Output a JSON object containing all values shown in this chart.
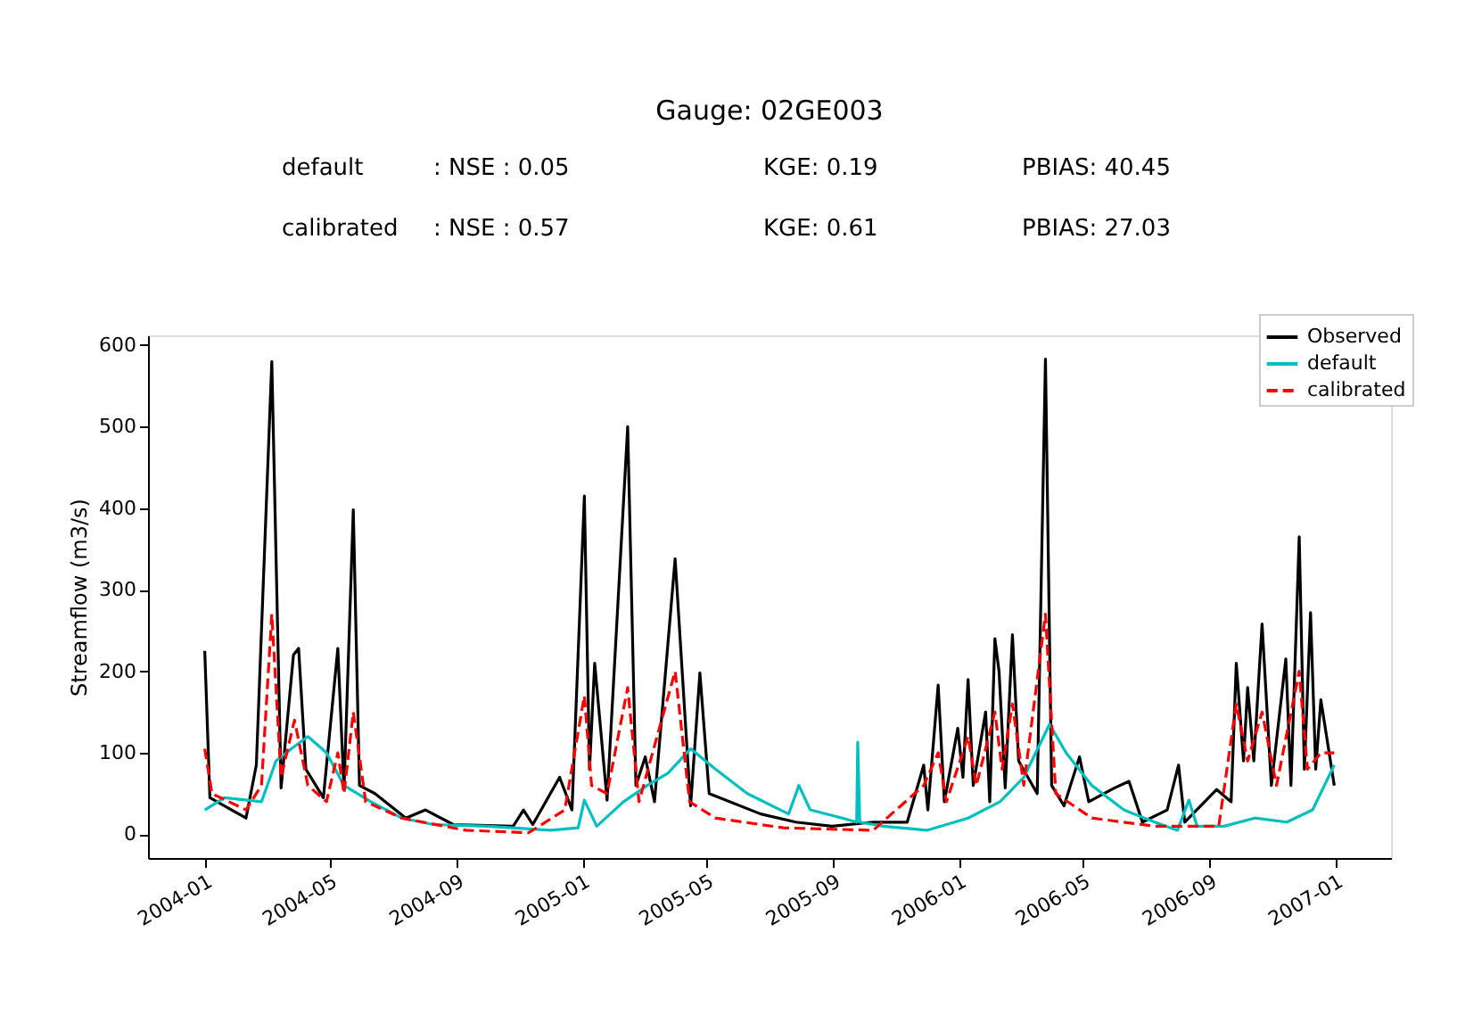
{
  "chart_data": {
    "type": "line",
    "title": "Gauge: 02GE003",
    "annotations": [
      "default",
      ": NSE :  0.05",
      "KGE: 0.19",
      "PBIAS: 40.45",
      "calibrated",
      ": NSE :  0.57",
      "KGE: 0.61",
      "PBIAS: 27.03"
    ],
    "ylabel": "Streamflow (m3/s)",
    "xlim": [
      "2003-11-07",
      "2007-02-24"
    ],
    "ylim": [
      -29,
      612
    ],
    "xticks": [
      {
        "value": "2004-01-01",
        "label": "2004-01"
      },
      {
        "value": "2004-05-01",
        "label": "2004-05"
      },
      {
        "value": "2004-09-01",
        "label": "2004-09"
      },
      {
        "value": "2005-01-01",
        "label": "2005-01"
      },
      {
        "value": "2005-05-01",
        "label": "2005-05"
      },
      {
        "value": "2005-09-01",
        "label": "2005-09"
      },
      {
        "value": "2006-01-01",
        "label": "2006-01"
      },
      {
        "value": "2006-05-01",
        "label": "2006-05"
      },
      {
        "value": "2006-09-01",
        "label": "2006-09"
      },
      {
        "value": "2007-01-01",
        "label": "2007-01"
      }
    ],
    "yticks": [
      0,
      100,
      200,
      300,
      400,
      500,
      600
    ],
    "grid": false,
    "legend": "top right",
    "series": [
      {
        "name": "Observed",
        "color": "#000000",
        "line_style": "solid",
        "x": [
          "2004-01-01",
          "2004-01-06",
          "2004-02-10",
          "2004-02-20",
          "2004-03-06",
          "2004-03-15",
          "2004-03-27",
          "2004-04-01",
          "2004-04-08",
          "2004-04-25",
          "2004-05-09",
          "2004-05-15",
          "2004-05-24",
          "2004-05-30",
          "2004-06-14",
          "2004-07-14",
          "2004-08-02",
          "2004-08-29",
          "2004-10-26",
          "2004-11-05",
          "2004-11-14",
          "2004-12-10",
          "2004-12-22",
          "2005-01-03",
          "2005-01-08",
          "2005-01-13",
          "2005-01-25",
          "2005-02-14",
          "2005-02-22",
          "2005-03-03",
          "2005-03-12",
          "2005-04-01",
          "2005-04-16",
          "2005-04-25",
          "2005-05-04",
          "2005-06-23",
          "2005-07-27",
          "2005-08-31",
          "2005-10-10",
          "2005-11-12",
          "2005-11-28",
          "2005-12-02",
          "2005-12-12",
          "2005-12-18",
          "2005-12-31",
          "2006-01-05",
          "2006-01-10",
          "2006-01-15",
          "2006-01-27",
          "2006-01-31",
          "2006-02-05",
          "2006-02-09",
          "2006-02-15",
          "2006-02-22",
          "2006-02-28",
          "2006-03-18",
          "2006-03-26",
          "2006-04-01",
          "2006-04-13",
          "2006-04-28",
          "2006-05-07",
          "2006-06-01",
          "2006-06-15",
          "2006-06-28",
          "2006-07-22",
          "2006-08-02",
          "2006-08-08",
          "2006-09-08",
          "2006-09-22",
          "2006-09-27",
          "2006-10-04",
          "2006-10-08",
          "2006-10-14",
          "2006-10-22",
          "2006-10-31",
          "2006-11-14",
          "2006-11-19",
          "2006-11-27",
          "2006-12-02",
          "2006-12-08",
          "2006-12-13",
          "2006-12-18",
          "2006-12-31"
        ],
        "values": [
          225,
          45,
          20,
          85,
          580,
          57,
          220,
          228,
          80,
          45,
          228,
          55,
          398,
          60,
          50,
          20,
          30,
          12,
          10,
          30,
          12,
          70,
          30,
          415,
          80,
          210,
          42,
          500,
          60,
          95,
          40,
          338,
          35,
          198,
          50,
          25,
          15,
          10,
          15,
          15,
          85,
          30,
          183,
          40,
          130,
          70,
          190,
          60,
          150,
          40,
          240,
          200,
          57,
          245,
          90,
          50,
          583,
          60,
          35,
          95,
          40,
          57,
          65,
          15,
          30,
          85,
          15,
          55,
          40,
          210,
          90,
          180,
          90,
          258,
          60,
          215,
          60,
          365,
          80,
          272,
          80,
          165,
          60
        ]
      },
      {
        "name": "default",
        "color": "#00bfbf",
        "line_style": "solid",
        "x": [
          "2004-01-01",
          "2004-01-20",
          "2004-02-25",
          "2004-03-10",
          "2004-03-25",
          "2004-04-10",
          "2004-04-28",
          "2004-05-15",
          "2004-06-10",
          "2004-07-10",
          "2004-08-10",
          "2004-10-01",
          "2004-12-01",
          "2004-12-28",
          "2005-01-03",
          "2005-01-15",
          "2005-02-10",
          "2005-03-05",
          "2005-03-25",
          "2005-04-16",
          "2005-05-10",
          "2005-06-10",
          "2005-07-20",
          "2005-07-30",
          "2005-08-10",
          "2005-09-10",
          "2005-09-24",
          "2005-09-25",
          "2005-09-27",
          "2005-10-20",
          "2005-12-01",
          "2006-01-10",
          "2006-02-10",
          "2006-03-05",
          "2006-03-30",
          "2006-04-15",
          "2006-05-10",
          "2006-06-10",
          "2006-07-10",
          "2006-08-01",
          "2006-08-12",
          "2006-08-20",
          "2006-09-15",
          "2006-10-15",
          "2006-11-15",
          "2006-12-10",
          "2006-12-31"
        ],
        "values": [
          30,
          45,
          40,
          90,
          105,
          120,
          100,
          60,
          40,
          20,
          12,
          10,
          5,
          8,
          42,
          10,
          40,
          60,
          75,
          105,
          80,
          50,
          25,
          60,
          30,
          20,
          15,
          113,
          15,
          10,
          5,
          20,
          40,
          70,
          135,
          100,
          60,
          30,
          15,
          5,
          42,
          10,
          10,
          20,
          15,
          30,
          85
        ]
      },
      {
        "name": "calibrated",
        "color": "#ff0000",
        "line_style": "dashed",
        "x": [
          "2004-01-01",
          "2004-01-08",
          "2004-02-10",
          "2004-02-25",
          "2004-03-06",
          "2004-03-15",
          "2004-03-28",
          "2004-04-10",
          "2004-04-28",
          "2004-05-09",
          "2004-05-15",
          "2004-05-24",
          "2004-06-05",
          "2004-07-10",
          "2004-09-10",
          "2004-11-10",
          "2004-12-15",
          "2005-01-03",
          "2005-01-10",
          "2005-01-25",
          "2005-02-14",
          "2005-02-25",
          "2005-04-01",
          "2005-04-15",
          "2005-05-10",
          "2005-07-15",
          "2005-10-10",
          "2005-11-28",
          "2005-12-12",
          "2005-12-20",
          "2006-01-10",
          "2006-01-18",
          "2006-02-05",
          "2006-02-12",
          "2006-02-22",
          "2006-03-05",
          "2006-03-26",
          "2006-04-05",
          "2006-05-10",
          "2006-07-10",
          "2006-09-10",
          "2006-09-27",
          "2006-10-08",
          "2006-10-22",
          "2006-11-05",
          "2006-11-27",
          "2006-12-05",
          "2006-12-18",
          "2006-12-31"
        ],
        "values": [
          105,
          50,
          30,
          60,
          270,
          70,
          140,
          60,
          40,
          100,
          50,
          150,
          40,
          20,
          5,
          2,
          30,
          170,
          60,
          50,
          180,
          40,
          200,
          40,
          20,
          8,
          5,
          60,
          100,
          40,
          120,
          60,
          150,
          80,
          160,
          60,
          270,
          50,
          20,
          10,
          10,
          160,
          90,
          150,
          60,
          200,
          80,
          100,
          100
        ]
      }
    ]
  }
}
